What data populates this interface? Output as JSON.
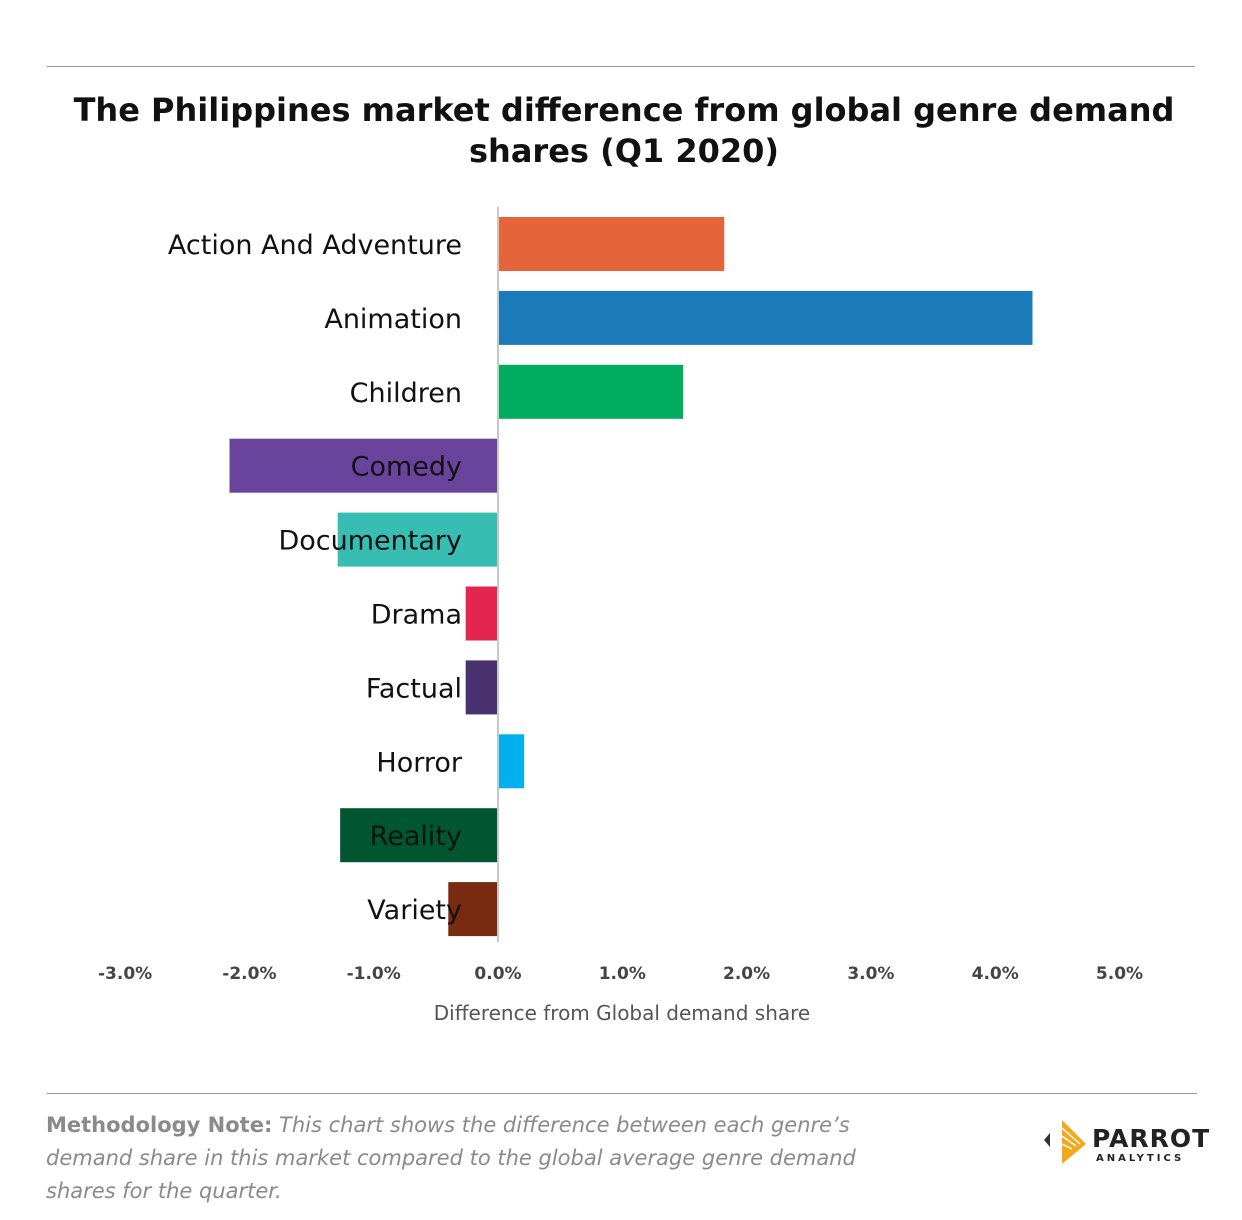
{
  "chart_data": {
    "type": "bar",
    "orientation": "horizontal",
    "title": "The Philippines market difference from global genre demand shares (Q1 2020)",
    "xlabel": "Difference from Global demand share",
    "ylabel": "",
    "xlim": [
      -3.0,
      5.0
    ],
    "x_ticks": [
      "-3.0%",
      "-2.0%",
      "-1.0%",
      "0.0%",
      "1.0%",
      "2.0%",
      "3.0%",
      "4.0%",
      "5.0%"
    ],
    "x_tick_values": [
      -3,
      -2,
      -1,
      0,
      1,
      2,
      3,
      4,
      5
    ],
    "grid": false,
    "categories": [
      "Action And Adventure",
      "Animation",
      "Children",
      "Comedy",
      "Documentary",
      "Drama",
      "Factual",
      "Horror",
      "Reality",
      "Variety"
    ],
    "values": [
      1.82,
      4.3,
      1.49,
      -2.16,
      -1.29,
      -0.26,
      -0.26,
      0.21,
      -1.27,
      -0.4
    ],
    "colors": [
      "#e56439",
      "#1b7bb8",
      "#00ad5f",
      "#6a449c",
      "#38bdb3",
      "#e4264f",
      "#4a3270",
      "#00b0ed",
      "#005630",
      "#7b2a12"
    ]
  },
  "footer": {
    "note_label": "Methodology Note:",
    "note_text": " This chart shows the difference between each genre’s demand share in this market compared to the global average genre demand shares for the quarter.",
    "logo_text": "PARROT",
    "logo_subtext": "ANALYTICS"
  }
}
